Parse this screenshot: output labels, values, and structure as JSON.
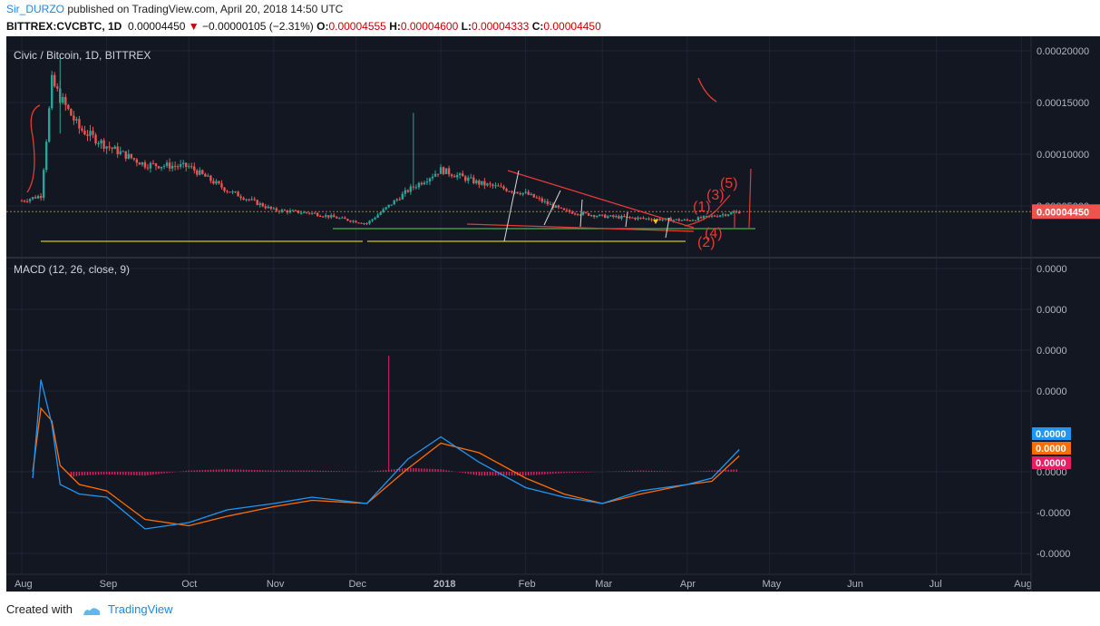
{
  "header": {
    "author": "Sir_DURZO",
    "published": "published on TradingView.com, April 20, 2018 14:50 UTC",
    "symbol": "BITTREX:CVCBTC, 1D",
    "last": "0.00004450",
    "arrow": "▼",
    "change": "−0.00000105 (−2.31%)",
    "o_label": "O:",
    "o": "0.00004555",
    "h_label": "H:",
    "h": "0.00004600",
    "l_label": "L:",
    "l": "0.00004333",
    "c_label": "C:",
    "c": "0.00004450"
  },
  "footer": {
    "created": "Created with",
    "brand": "TradingView"
  },
  "colors": {
    "bg": "#131722",
    "up": "#26a69a",
    "down": "#ef5350",
    "macd": "#2196f3",
    "signal": "#ff6d00",
    "hist": "#e91e63",
    "axis_text": "#b2b5be",
    "draw_red": "#e53935",
    "draw_green": "#4caf50",
    "draw_yellow": "#d4c21c"
  },
  "chart_data": [
    {
      "type": "candlestick",
      "title": "Civic / Bitcoin, 1D, BITTREX",
      "y_ticks": [
        "0.00020000",
        "0.00015000",
        "0.00010000",
        "0.00005000"
      ],
      "last_price_label": "0.00004450",
      "x_ticks": [
        "Aug",
        "Sep",
        "Oct",
        "Nov",
        "Dec",
        "2018",
        "Feb",
        "Mar",
        "Apr",
        "May",
        "Jun",
        "Jul",
        "Aug"
      ],
      "wave_labels": [
        "(1)",
        "(2)",
        "(3)",
        "(4)",
        "(5)"
      ],
      "close_series": [
        {
          "date": "Aug 1",
          "close": 5.5e-05
        },
        {
          "date": "Aug 8",
          "close": 6e-05
        },
        {
          "date": "Aug 12",
          "close": 0.00017
        },
        {
          "date": "Aug 15",
          "close": 0.000155
        },
        {
          "date": "Aug 22",
          "close": 0.000125
        },
        {
          "date": "Sep 1",
          "close": 0.000108
        },
        {
          "date": "Sep 15",
          "close": 9e-05
        },
        {
          "date": "Oct 1",
          "close": 8.8e-05
        },
        {
          "date": "Oct 15",
          "close": 6.5e-05
        },
        {
          "date": "Nov 1",
          "close": 4.6e-05
        },
        {
          "date": "Nov 15",
          "close": 4.3e-05
        },
        {
          "date": "Dec 5",
          "close": 3.3e-05
        },
        {
          "date": "Dec 20",
          "close": 6.5e-05
        },
        {
          "date": "Jan 1",
          "close": 8.5e-05
        },
        {
          "date": "Jan 15",
          "close": 7.2e-05
        },
        {
          "date": "Feb 1",
          "close": 6.2e-05
        },
        {
          "date": "Feb 15",
          "close": 4.5e-05
        },
        {
          "date": "Mar 1",
          "close": 4e-05
        },
        {
          "date": "Mar 15",
          "close": 3.8e-05
        },
        {
          "date": "Apr 1",
          "close": 3.6e-05
        },
        {
          "date": "Apr 10",
          "close": 4e-05
        },
        {
          "date": "Apr 20",
          "close": 4.45e-05
        }
      ]
    },
    {
      "type": "line",
      "title": "MACD (12, 26, close, 9)",
      "y_ticks": [
        "0.0000",
        "0.0000",
        "0.0000",
        "0.0000",
        "0.0000",
        "-0.0000",
        "-0.0000"
      ],
      "last_labels": {
        "macd": "0.0000",
        "signal": "0.0000",
        "hist": "0.0000"
      },
      "series": [
        {
          "name": "MACD",
          "values": [
            -0.2,
            2.9,
            1.5,
            -0.4,
            -0.7,
            -0.8,
            -1.8,
            -1.6,
            -1.2,
            -1.0,
            -0.8,
            -1.0,
            0.4,
            1.1,
            0.3,
            -0.5,
            -0.8,
            -1.0,
            -0.6,
            -0.4,
            -0.2,
            0.7
          ]
        },
        {
          "name": "Signal",
          "values": [
            0.0,
            2.0,
            1.6,
            0.2,
            -0.4,
            -0.6,
            -1.5,
            -1.7,
            -1.4,
            -1.1,
            -0.9,
            -1.0,
            0.1,
            0.9,
            0.6,
            -0.2,
            -0.7,
            -1.0,
            -0.7,
            -0.4,
            -0.3,
            0.5
          ]
        }
      ]
    }
  ]
}
